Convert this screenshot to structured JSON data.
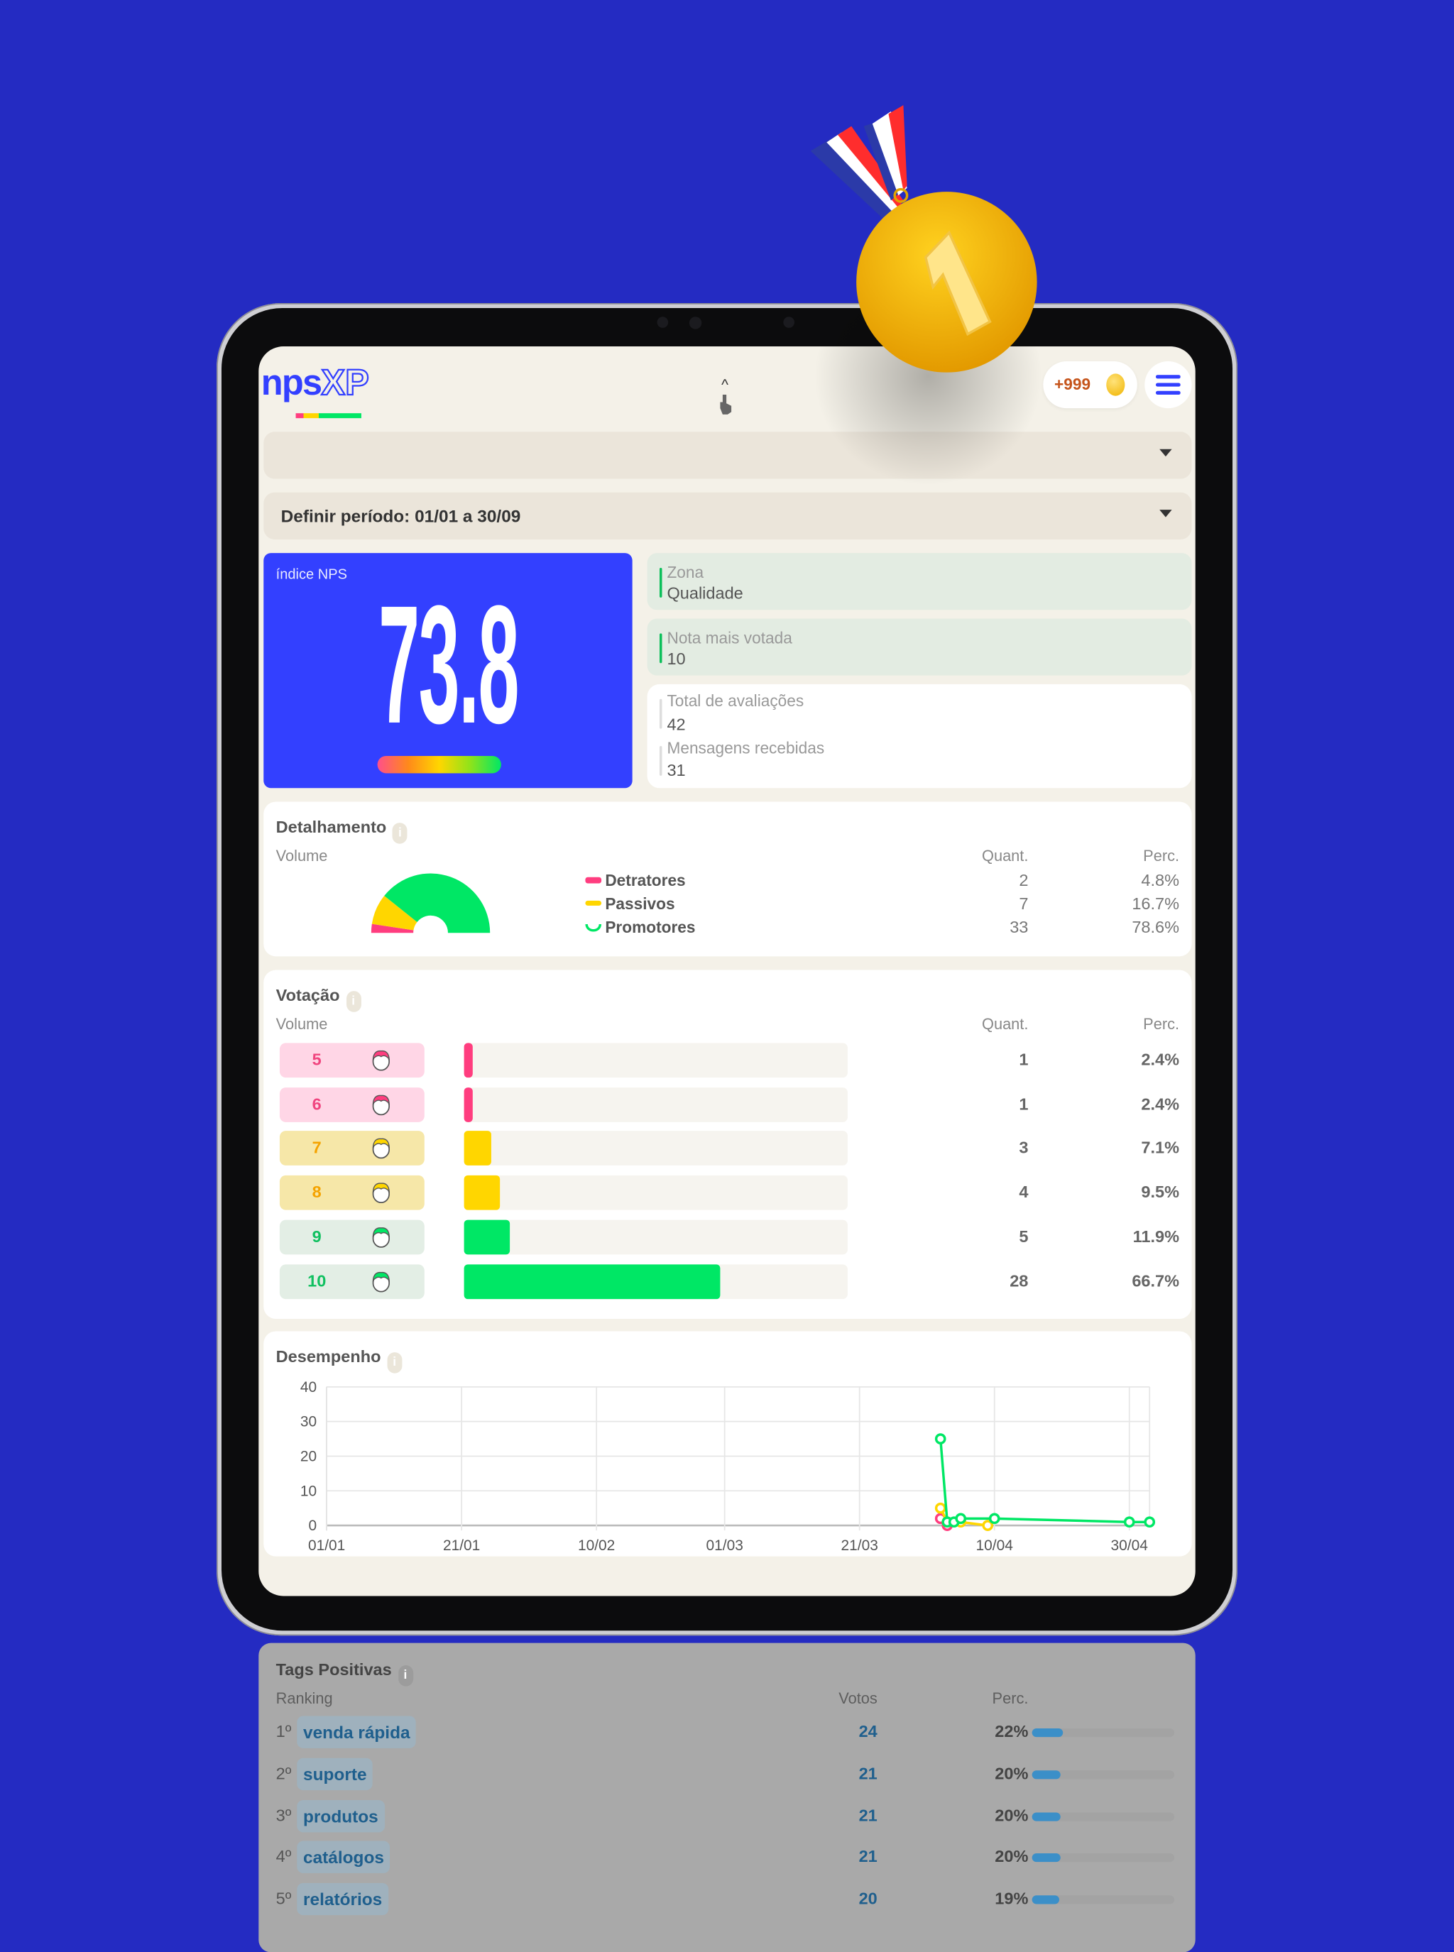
{
  "colors": {
    "background": "#242bc2",
    "brand": "#3340ff",
    "detractor": "#ff3d7f",
    "passive": "#ffd600",
    "promoter": "#00e765",
    "tag": "#1f5f8d"
  },
  "header": {
    "logo_text": "npsXP",
    "logo_part1": "nps",
    "logo_part2": "XP",
    "coins": "+999",
    "coin_icon": "coin-icon",
    "menu_icon": "hamburger-icon"
  },
  "filters": {
    "first_dropdown": "",
    "period_dropdown": "Definir período: 01/01 a 30/09"
  },
  "nps": {
    "label": "índice NPS",
    "value": "73.8"
  },
  "stats": {
    "zone": {
      "label": "Zona",
      "value": "Qualidade"
    },
    "most_voted": {
      "label": "Nota mais votada",
      "value": "10"
    },
    "total": {
      "label": "Total de avaliações",
      "value": "42"
    },
    "messages": {
      "label": "Mensagens recebidas",
      "value": "31"
    }
  },
  "detail": {
    "title": "Detalhamento",
    "volume": "Volume",
    "quant": "Quant.",
    "perc": "Perc.",
    "rows": [
      {
        "label": "Detratores",
        "quant": "2",
        "perc": "4.8%",
        "value": 4.8,
        "color": "#ff3d7f"
      },
      {
        "label": "Passivos",
        "quant": "7",
        "perc": "16.7%",
        "value": 16.7,
        "color": "#ffd600"
      },
      {
        "label": "Promotores",
        "quant": "33",
        "perc": "78.6%",
        "value": 78.6,
        "color": "#00e765"
      }
    ]
  },
  "votes": {
    "title": "Votação",
    "volume": "Volume",
    "quant": "Quant.",
    "perc": "Perc.",
    "rows": [
      {
        "score": "5",
        "quant": "1",
        "perc": "2.4%",
        "value": 2.4,
        "color": "#ff3d7f",
        "bg": "#ffd6e6",
        "text": "#f0457f"
      },
      {
        "score": "6",
        "quant": "1",
        "perc": "2.4%",
        "value": 2.4,
        "color": "#ff3d7f",
        "bg": "#ffd6e6",
        "text": "#f0457f"
      },
      {
        "score": "7",
        "quant": "3",
        "perc": "7.1%",
        "value": 7.1,
        "color": "#ffd600",
        "bg": "#f6e7a8",
        "text": "#f5a300"
      },
      {
        "score": "8",
        "quant": "4",
        "perc": "9.5%",
        "value": 9.5,
        "color": "#ffd600",
        "bg": "#f6e7a8",
        "text": "#f5a300"
      },
      {
        "score": "9",
        "quant": "5",
        "perc": "11.9%",
        "value": 11.9,
        "color": "#00e765",
        "bg": "#e3eee5",
        "text": "#10c060"
      },
      {
        "score": "10",
        "quant": "28",
        "perc": "66.7%",
        "value": 66.7,
        "color": "#00e765",
        "bg": "#e3eee5",
        "text": "#10c060"
      }
    ]
  },
  "performance": {
    "title": "Desempenho"
  },
  "chart_data": {
    "type": "line",
    "title": "Desempenho",
    "xlabel": "",
    "ylabel": "",
    "xlim": [
      "01/01",
      "03/05"
    ],
    "ylim": [
      0,
      40
    ],
    "yticks": [
      "0",
      "10",
      "20",
      "30",
      "40"
    ],
    "xticks": [
      "01/01",
      "21/01",
      "10/02",
      "01/03",
      "21/03",
      "10/04",
      "30/04"
    ],
    "grid": true,
    "series": [
      {
        "color": "#ff3d7f",
        "points": [
          {
            "x": "02/04",
            "y": 2
          },
          {
            "x": "03/04",
            "y": 0
          }
        ]
      },
      {
        "color": "#ffd600",
        "points": [
          {
            "x": "02/04",
            "y": 5
          },
          {
            "x": "03/04",
            "y": 1
          },
          {
            "x": "05/04",
            "y": 1
          },
          {
            "x": "09/04",
            "y": 0
          }
        ]
      },
      {
        "color": "#00e765",
        "points": [
          {
            "x": "02/04",
            "y": 25
          },
          {
            "x": "03/04",
            "y": 1
          },
          {
            "x": "04/04",
            "y": 1
          },
          {
            "x": "05/04",
            "y": 2
          },
          {
            "x": "10/04",
            "y": 2
          },
          {
            "x": "30/04",
            "y": 1
          },
          {
            "x": "03/05",
            "y": 1
          }
        ]
      }
    ]
  },
  "tags": {
    "title": "Tags Positivas",
    "ranking": "Ranking",
    "votes": "Votos",
    "perc": "Perc.",
    "rows": [
      {
        "rank": "1º",
        "tag": "venda rápida",
        "votes": "24",
        "perc": "22%",
        "value": 22
      },
      {
        "rank": "2º",
        "tag": "suporte",
        "votes": "21",
        "perc": "20%",
        "value": 20
      },
      {
        "rank": "3º",
        "tag": "produtos",
        "votes": "21",
        "perc": "20%",
        "value": 20
      },
      {
        "rank": "4º",
        "tag": "catálogos",
        "votes": "21",
        "perc": "20%",
        "value": 20
      },
      {
        "rank": "5º",
        "tag": "relatórios",
        "votes": "20",
        "perc": "19%",
        "value": 19
      }
    ]
  },
  "medal": {
    "label": "1",
    "icon": "gold-medal-icon"
  }
}
